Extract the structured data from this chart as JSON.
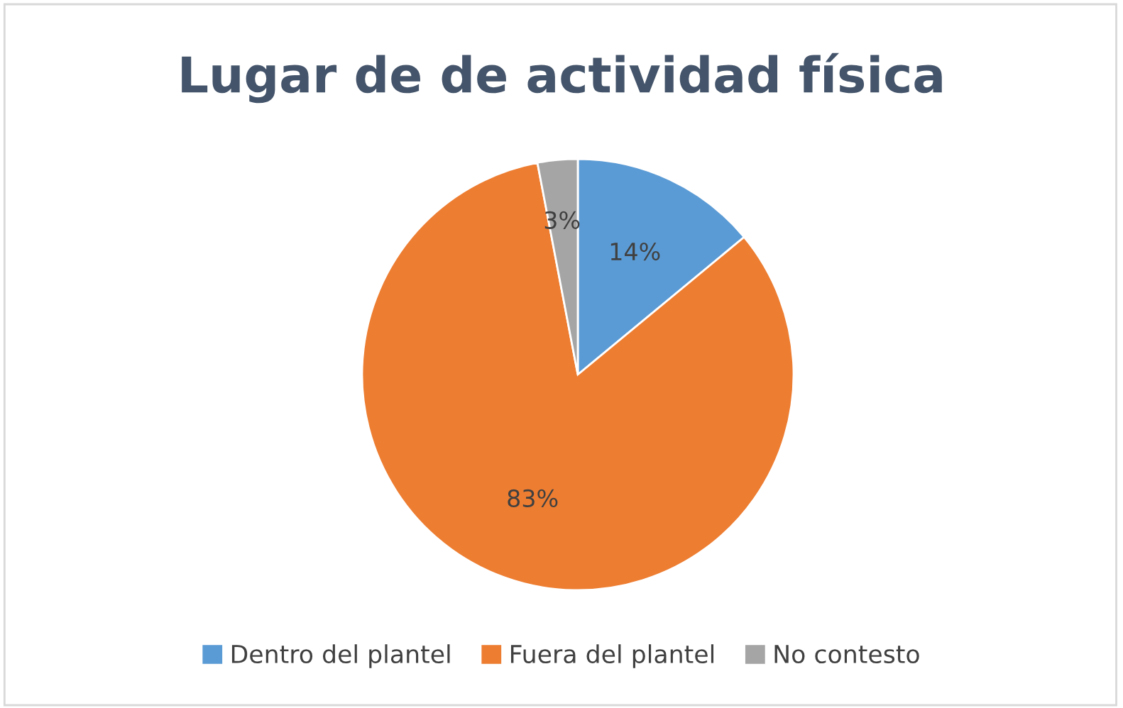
{
  "chart_data": {
    "type": "pie",
    "title": "Lugar de de actividad física",
    "categories": [
      "Dentro del plantel",
      "Fuera del plantel",
      "No contesto"
    ],
    "values": [
      14,
      83,
      3
    ],
    "colors": [
      "#5b9bd5",
      "#ed7d31",
      "#a5a5a5"
    ],
    "value_labels": [
      "14%",
      "83%",
      "3%"
    ],
    "legend": "bottom"
  }
}
